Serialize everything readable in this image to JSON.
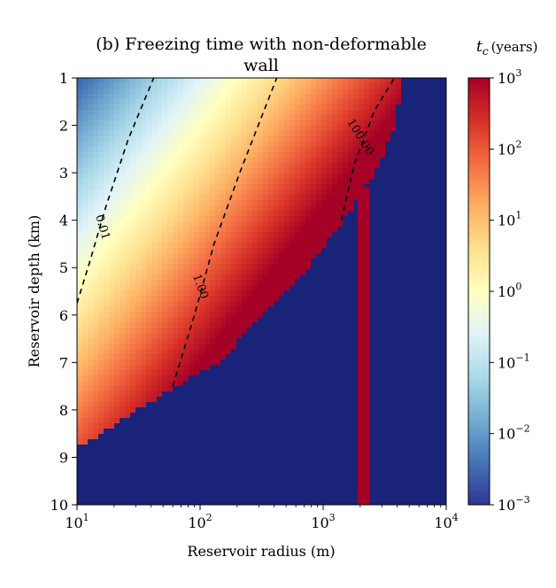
{
  "chart_data": {
    "type": "heatmap",
    "title": "(b) Freezing time with non-deformable wall",
    "xlabel": "Reservoir radius (m)",
    "ylabel": "Reservoir depth (km)",
    "x_scale": "log",
    "xlim": [
      10,
      10000
    ],
    "ylim": [
      10,
      1
    ],
    "x_ticks": [
      {
        "base": "10",
        "exp": "1"
      },
      {
        "base": "10",
        "exp": "2"
      },
      {
        "base": "10",
        "exp": "3"
      },
      {
        "base": "10",
        "exp": "4"
      }
    ],
    "y_ticks": [
      "1",
      "2",
      "3",
      "4",
      "5",
      "6",
      "7",
      "8",
      "9",
      "10"
    ],
    "y_tick_values": [
      1,
      2,
      3,
      4,
      5,
      6,
      7,
      8,
      9,
      10
    ],
    "colorbar": {
      "label_symbol": "t",
      "label_sub": "c",
      "label_unit": "(years)",
      "scale": "log",
      "range": [
        0.001,
        1000
      ],
      "ticks": [
        {
          "base": "10",
          "exp": "3"
        },
        {
          "base": "10",
          "exp": "2"
        },
        {
          "base": "10",
          "exp": "1"
        },
        {
          "base": "10",
          "exp": "0"
        },
        {
          "base": "10",
          "exp": "−1"
        },
        {
          "base": "10",
          "exp": "−2"
        },
        {
          "base": "10",
          "exp": "−3"
        }
      ],
      "colormap": "RdYlBu_r"
    },
    "no_data_color": "#1a237a",
    "field_model": {
      "log10_t_at_r10_depth1": -2.6,
      "slope_per_decade_radius": 2.0,
      "slope_per_km_depth": 0.6
    },
    "valid_region_boundary": [
      {
        "depth": 1.0,
        "radius": 4500
      },
      {
        "depth": 2.0,
        "radius": 3800
      },
      {
        "depth": 3.0,
        "radius": 2700
      },
      {
        "depth": 4.0,
        "radius": 1450
      },
      {
        "depth": 5.0,
        "radius": 750
      },
      {
        "depth": 6.0,
        "radius": 330
      },
      {
        "depth": 7.0,
        "radius": 140
      },
      {
        "depth": 7.5,
        "radius": 65
      },
      {
        "depth": 8.0,
        "radius": 30
      },
      {
        "depth": 8.6,
        "radius": 14
      },
      {
        "depth": 8.8,
        "radius": 10
      }
    ],
    "red_stripe": {
      "radius_min": 1900,
      "radius_max": 2400,
      "depth_min": 3.3,
      "depth_max": 10,
      "value": 1000
    },
    "contours": [
      {
        "label": "0.01",
        "points": [
          {
            "r": 10,
            "d": 5.75
          },
          {
            "r": 12.6,
            "d": 4.9
          },
          {
            "r": 17,
            "d": 3.75
          },
          {
            "r": 26,
            "d": 2.3
          },
          {
            "r": 42,
            "d": 1.0
          }
        ],
        "label_at": {
          "r": 16,
          "d": 4.15
        },
        "label_angle": 73
      },
      {
        "label": "1.00",
        "points": [
          {
            "r": 60,
            "d": 7.5
          },
          {
            "r": 90,
            "d": 6.0
          },
          {
            "r": 130,
            "d": 4.5
          },
          {
            "r": 210,
            "d": 3.0
          },
          {
            "r": 420,
            "d": 1.0
          }
        ],
        "label_at": {
          "r": 100,
          "d": 5.4
        },
        "label_angle": 70
      },
      {
        "label": "100.00",
        "points": [
          {
            "r": 1400,
            "d": 4.0
          },
          {
            "r": 1800,
            "d": 2.8
          },
          {
            "r": 2600,
            "d": 1.7
          },
          {
            "r": 3800,
            "d": 1.0
          }
        ],
        "label_at": {
          "r": 2000,
          "d": 2.25
        },
        "label_angle": 58
      }
    ]
  }
}
